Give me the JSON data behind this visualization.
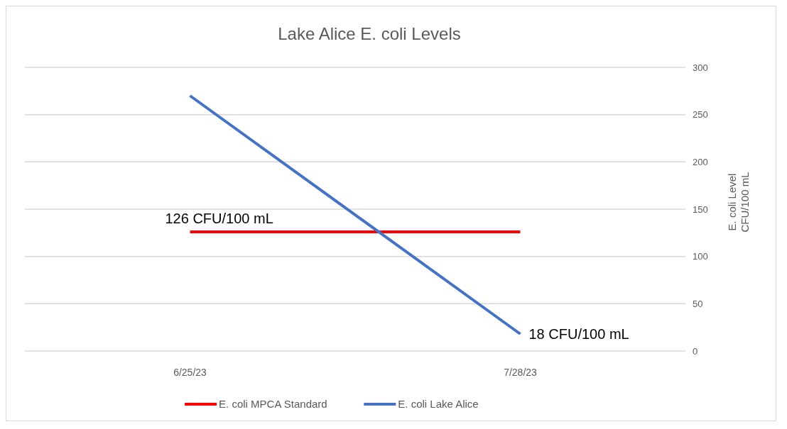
{
  "chart_data": {
    "type": "line",
    "title": "Lake Alice E. coli Levels",
    "ylabel": "E. coli Level\nCFU/100 mL",
    "categories": [
      "6/25/23",
      "7/28/23"
    ],
    "series": [
      {
        "name": "E. coli MPCA Standard",
        "color": "#ff0000",
        "values": [
          126,
          126
        ],
        "value_labels": [
          "126 CFU/100 mL",
          null
        ]
      },
      {
        "name": "E. coli Lake Alice",
        "color": "#4472c4",
        "values": [
          270,
          18
        ],
        "value_labels": [
          null,
          "18 CFU/100 mL"
        ]
      }
    ],
    "ylim": [
      0,
      300
    ],
    "yticks": [
      0,
      50,
      100,
      150,
      200,
      250,
      300
    ],
    "grid": "y",
    "legend": "bottom"
  }
}
